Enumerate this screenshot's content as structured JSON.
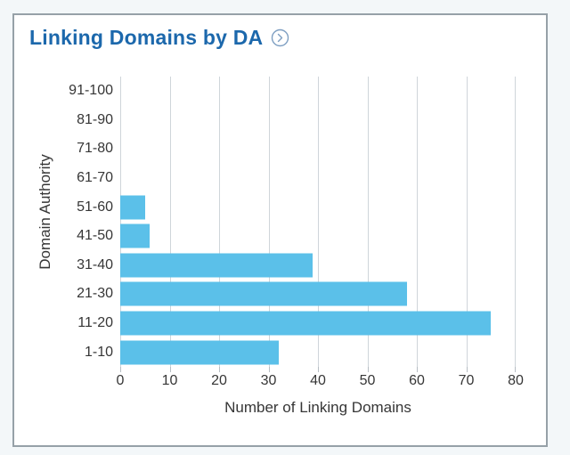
{
  "page": {
    "background_color": "#f3f7f9"
  },
  "card": {
    "title": "Linking Domains by DA",
    "title_color": "#1c68ac",
    "border_color": "#96a1a8",
    "background_color": "#ffffff",
    "chevron_icon": "chevron-right-in-circle",
    "icon_color": "#7e9fc2"
  },
  "chart_data": {
    "type": "bar",
    "orientation": "horizontal",
    "title": "Linking Domains by DA",
    "categories": [
      "91-100",
      "81-90",
      "71-80",
      "61-70",
      "51-60",
      "41-50",
      "31-40",
      "21-30",
      "11-20",
      "1-10"
    ],
    "values": [
      0,
      0,
      0,
      0,
      5,
      6,
      39,
      58,
      75,
      32
    ],
    "xlabel": "Number of Linking Domains",
    "ylabel": "Domain Authority",
    "xlim": [
      0,
      80
    ],
    "x_ticks": [
      0,
      10,
      20,
      30,
      40,
      50,
      60,
      70,
      80
    ],
    "grid": true,
    "legend": false,
    "bar_color": "#5bc0e9",
    "gridline_color": "#cfd5da",
    "tick_text_color": "#363636"
  }
}
